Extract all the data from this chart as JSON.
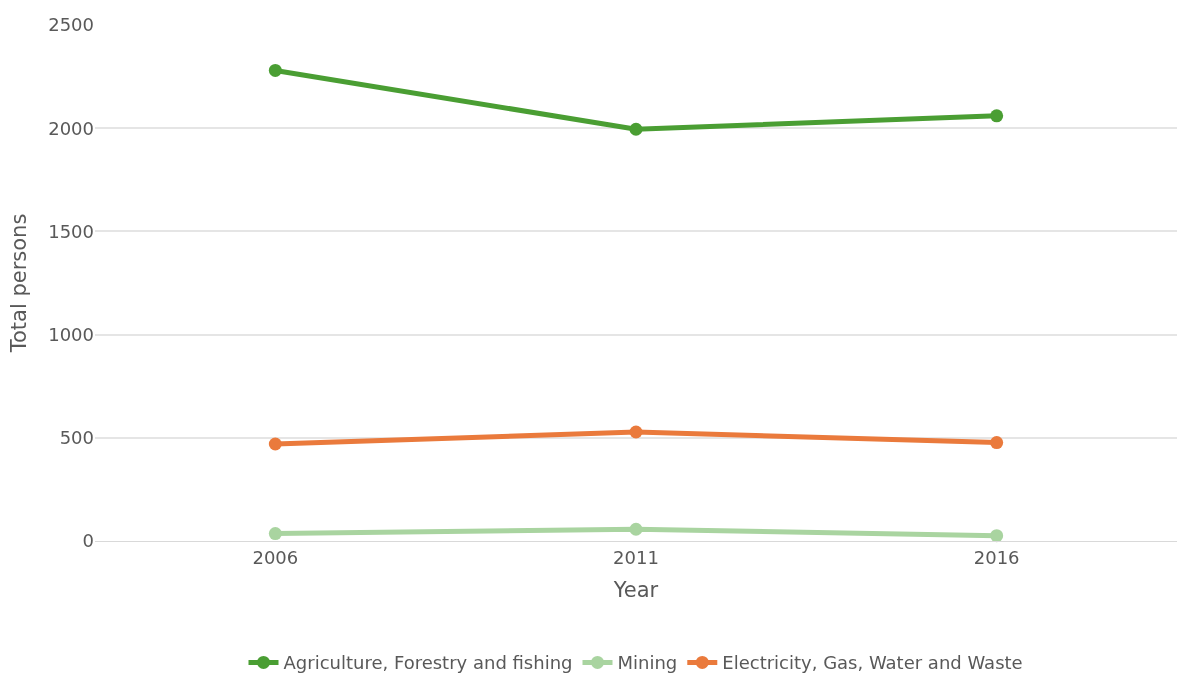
{
  "chart_data": {
    "type": "line",
    "xlabel": "Year",
    "ylabel": "Total persons",
    "categories": [
      "2006",
      "2011",
      "2016"
    ],
    "series": [
      {
        "name": "Agriculture, Forestry and fishing",
        "color": "#4a9e33",
        "values": [
          2280,
          1995,
          2060
        ]
      },
      {
        "name": "Mining",
        "color": "#a9d4a0",
        "values": [
          36,
          57,
          26
        ]
      },
      {
        "name": "Electricity, Gas, Water and Waste",
        "color": "#ea7a3c",
        "values": [
          470,
          528,
          477
        ]
      }
    ],
    "ylim": [
      0,
      2500
    ],
    "yticks": [
      0,
      500,
      1000,
      1500,
      2000,
      2500
    ],
    "grid": "y",
    "legend": "bottom",
    "marker": "circle",
    "line_style": "solid"
  }
}
